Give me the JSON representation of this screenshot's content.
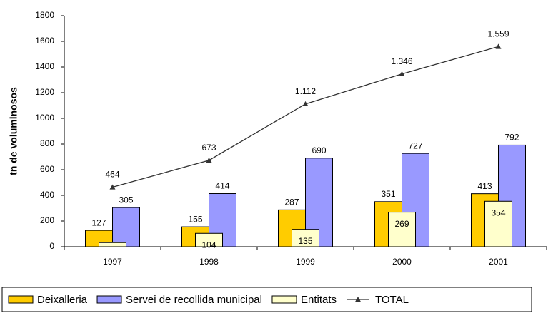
{
  "chart_data": {
    "type": "bar",
    "y_label": "tn de voluminosos",
    "categories": [
      "1997",
      "1998",
      "1999",
      "2000",
      "2001"
    ],
    "series": [
      {
        "name": "Deixalleria",
        "color": "#ffcc00",
        "values": [
          127,
          155,
          287,
          351,
          413
        ]
      },
      {
        "name": "Servei de recollida municipal",
        "color": "#9999ff",
        "values": [
          305,
          414,
          690,
          727,
          792
        ]
      },
      {
        "name": "Entitats",
        "color": "#ffffcc",
        "values": [
          32,
          104,
          135,
          269,
          354
        ],
        "value_labels": [
          null,
          "104",
          "135",
          "269",
          "354"
        ]
      },
      {
        "name": "TOTAL",
        "type": "line",
        "color": "#333333",
        "values": [
          464,
          673,
          1112,
          1346,
          1559
        ],
        "value_labels": [
          "464",
          "673",
          "1.112",
          "1.346",
          "1.559"
        ]
      }
    ],
    "ylim": [
      0,
      1800
    ],
    "yticks": [
      0,
      200,
      400,
      600,
      800,
      1000,
      1200,
      1400,
      1600,
      1800
    ],
    "legend": "bottom"
  }
}
